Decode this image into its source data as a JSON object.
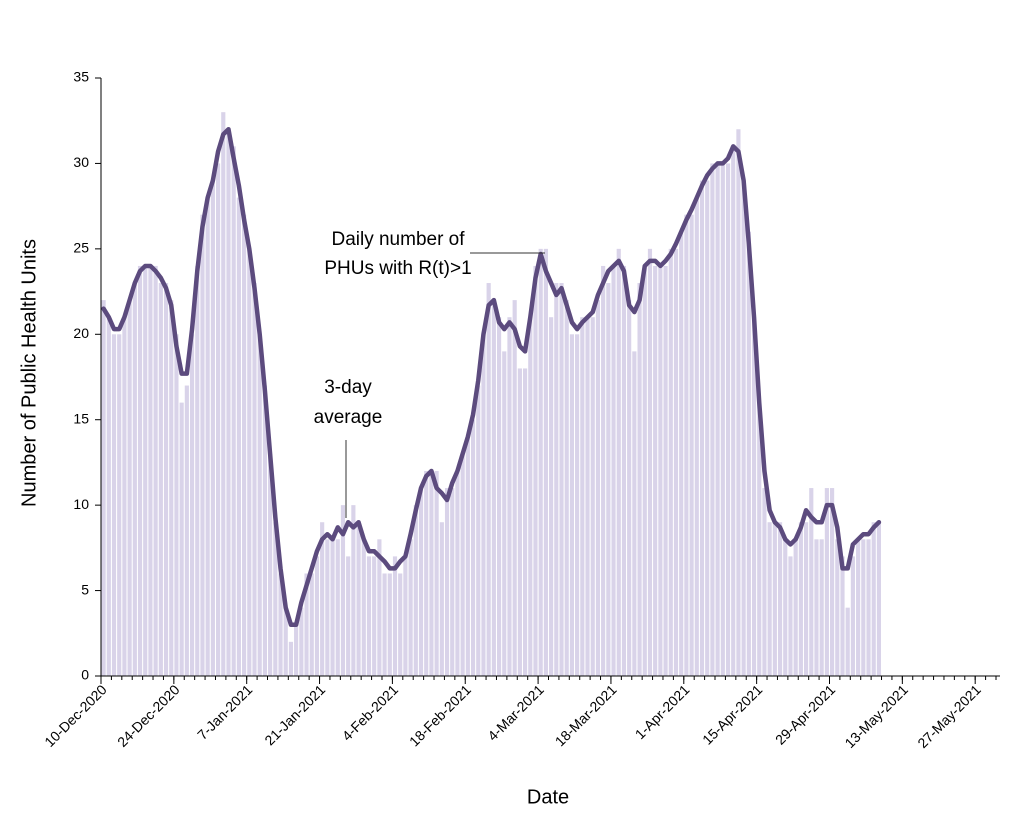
{
  "chart_data": {
    "type": "combo",
    "x_label": "Date",
    "y_label": "Number of Public Health Units",
    "x": [
      "2020-12-10",
      "2020-12-11",
      "2020-12-12",
      "2020-12-13",
      "2020-12-14",
      "2020-12-15",
      "2020-12-16",
      "2020-12-17",
      "2020-12-18",
      "2020-12-19",
      "2020-12-20",
      "2020-12-21",
      "2020-12-22",
      "2020-12-23",
      "2020-12-24",
      "2020-12-25",
      "2020-12-26",
      "2020-12-27",
      "2020-12-28",
      "2020-12-29",
      "2020-12-30",
      "2020-12-31",
      "2021-01-01",
      "2021-01-02",
      "2021-01-03",
      "2021-01-04",
      "2021-01-05",
      "2021-01-06",
      "2021-01-07",
      "2021-01-08",
      "2021-01-09",
      "2021-01-10",
      "2021-01-11",
      "2021-01-12",
      "2021-01-13",
      "2021-01-14",
      "2021-01-15",
      "2021-01-16",
      "2021-01-17",
      "2021-01-18",
      "2021-01-19",
      "2021-01-20",
      "2021-01-21",
      "2021-01-22",
      "2021-01-23",
      "2021-01-24",
      "2021-01-25",
      "2021-01-26",
      "2021-01-27",
      "2021-01-28",
      "2021-01-29",
      "2021-01-30",
      "2021-01-31",
      "2021-02-01",
      "2021-02-02",
      "2021-02-03",
      "2021-02-04",
      "2021-02-05",
      "2021-02-06",
      "2021-02-07",
      "2021-02-08",
      "2021-02-09",
      "2021-02-10",
      "2021-02-11",
      "2021-02-12",
      "2021-02-13",
      "2021-02-14",
      "2021-02-15",
      "2021-02-16",
      "2021-02-17",
      "2021-02-18",
      "2021-02-19",
      "2021-02-20",
      "2021-02-21",
      "2021-02-22",
      "2021-02-23",
      "2021-02-24",
      "2021-02-25",
      "2021-02-26",
      "2021-02-27",
      "2021-02-28",
      "2021-03-01",
      "2021-03-02",
      "2021-03-03",
      "2021-03-04",
      "2021-03-05",
      "2021-03-06",
      "2021-03-07",
      "2021-03-08",
      "2021-03-09",
      "2021-03-10",
      "2021-03-11",
      "2021-03-12",
      "2021-03-13",
      "2021-03-14",
      "2021-03-15",
      "2021-03-16",
      "2021-03-17",
      "2021-03-18",
      "2021-03-19",
      "2021-03-20",
      "2021-03-21",
      "2021-03-22",
      "2021-03-23",
      "2021-03-24",
      "2021-03-25",
      "2021-03-26",
      "2021-03-27",
      "2021-03-28",
      "2021-03-29",
      "2021-03-30",
      "2021-03-31",
      "2021-04-01",
      "2021-04-02",
      "2021-04-03",
      "2021-04-04",
      "2021-04-05",
      "2021-04-06",
      "2021-04-07",
      "2021-04-08",
      "2021-04-09",
      "2021-04-10",
      "2021-04-11",
      "2021-04-12",
      "2021-04-13",
      "2021-04-14",
      "2021-04-15",
      "2021-04-16",
      "2021-04-17",
      "2021-04-18",
      "2021-04-19",
      "2021-04-20",
      "2021-04-21",
      "2021-04-22",
      "2021-04-23",
      "2021-04-24",
      "2021-04-25",
      "2021-04-26",
      "2021-04-27",
      "2021-04-28",
      "2021-04-29",
      "2021-04-30",
      "2021-05-01",
      "2021-05-02",
      "2021-05-03",
      "2021-05-04",
      "2021-05-05",
      "2021-05-06",
      "2021-05-07",
      "2021-05-08"
    ],
    "xlim": [
      "2020-12-10",
      "2021-05-31"
    ],
    "xticks": [
      {
        "value": "2020-12-10",
        "label": "10-Dec-2020"
      },
      {
        "value": "2020-12-24",
        "label": "24-Dec-2020"
      },
      {
        "value": "2021-01-07",
        "label": "7-Jan-2021"
      },
      {
        "value": "2021-01-21",
        "label": "21-Jan-2021"
      },
      {
        "value": "2021-02-04",
        "label": "4-Feb-2021"
      },
      {
        "value": "2021-02-18",
        "label": "18-Feb-2021"
      },
      {
        "value": "2021-03-04",
        "label": "4-Mar-2021"
      },
      {
        "value": "2021-03-18",
        "label": "18-Mar-2021"
      },
      {
        "value": "2021-04-01",
        "label": "1-Apr-2021"
      },
      {
        "value": "2021-04-15",
        "label": "15-Apr-2021"
      },
      {
        "value": "2021-04-29",
        "label": "29-Apr-2021"
      },
      {
        "value": "2021-05-13",
        "label": "13-May-2021"
      },
      {
        "value": "2021-05-27",
        "label": "27-May-2021"
      }
    ],
    "ylim": [
      0,
      35
    ],
    "yticks": [
      0,
      5,
      10,
      15,
      20,
      25,
      30,
      35
    ],
    "series": [
      {
        "type": "bar",
        "color": "#d9d3e9",
        "values": [
          22,
          21,
          20,
          20,
          21,
          22,
          23,
          24,
          24,
          24,
          24,
          23,
          23,
          22,
          20,
          16,
          17,
          20,
          24,
          27,
          28,
          29,
          30,
          33,
          32,
          31,
          28,
          27,
          25,
          23,
          20,
          17,
          13,
          9,
          6,
          4,
          2,
          3,
          4,
          6,
          6,
          7,
          9,
          8,
          8,
          8,
          10,
          7,
          10,
          9,
          8,
          7,
          7,
          8,
          6,
          6,
          7,
          6,
          7,
          8,
          10,
          11,
          12,
          12,
          12,
          9,
          11,
          11,
          12,
          13,
          14,
          15,
          17,
          20,
          23,
          22,
          21,
          19,
          21,
          22,
          18,
          18,
          21,
          24,
          25,
          25,
          21,
          23,
          23,
          22,
          20,
          20,
          21,
          21,
          21,
          22,
          24,
          23,
          24,
          25,
          24,
          22,
          19,
          23,
          24,
          25,
          24,
          24,
          24,
          25,
          25,
          26,
          27,
          27,
          28,
          29,
          29,
          30,
          30,
          30,
          30,
          31,
          32,
          29,
          26,
          21,
          16,
          11,
          9,
          9,
          9,
          8,
          7,
          8,
          9,
          9,
          11,
          8,
          8,
          11,
          11,
          8,
          7,
          4,
          7,
          8,
          8,
          8,
          9,
          9
        ]
      },
      {
        "type": "line",
        "color": "#5c4b7e",
        "values": [
          21.5,
          21,
          20.3,
          20.3,
          21,
          22,
          23,
          23.7,
          24,
          24,
          23.7,
          23.3,
          22.7,
          21.7,
          19.3,
          17.7,
          17.7,
          20.3,
          23.7,
          26.3,
          28,
          29,
          30.7,
          31.7,
          32,
          30.3,
          28.7,
          26.7,
          25,
          22.7,
          20,
          16.7,
          13,
          9.3,
          6.3,
          4,
          3,
          3,
          4.3,
          5.3,
          6.3,
          7.3,
          8,
          8.3,
          8,
          8.7,
          8.3,
          9,
          8.7,
          9,
          8,
          7.3,
          7.3,
          7,
          6.7,
          6.3,
          6.3,
          6.7,
          7,
          8.3,
          9.7,
          11,
          11.7,
          12,
          11,
          10.7,
          10.3,
          11.3,
          12,
          13,
          14,
          15.3,
          17.3,
          20,
          21.7,
          22,
          20.7,
          20.3,
          20.7,
          20.3,
          19.3,
          19,
          21,
          23.3,
          24.7,
          23.7,
          23,
          22.3,
          22.7,
          21.7,
          20.7,
          20.3,
          20.7,
          21,
          21.3,
          22.3,
          23,
          23.7,
          24,
          24.3,
          23.7,
          21.7,
          21.3,
          22,
          24,
          24.3,
          24.3,
          24,
          24.3,
          24.7,
          25.3,
          26,
          26.7,
          27.3,
          28,
          28.7,
          29.3,
          29.7,
          30,
          30,
          30.3,
          31,
          30.7,
          29,
          25.3,
          21,
          16,
          12,
          9.7,
          9,
          8.7,
          8,
          7.7,
          8,
          8.7,
          9.7,
          9.3,
          9,
          9,
          10,
          10,
          8.7,
          6.3,
          6.3,
          7.7,
          8,
          8.3,
          8.3,
          8.7,
          9
        ]
      }
    ],
    "annotations": [
      {
        "text": [
          "Daily number of",
          "PHUs with R(t)>1"
        ]
      },
      {
        "text": [
          "3-day",
          "average"
        ]
      }
    ]
  }
}
